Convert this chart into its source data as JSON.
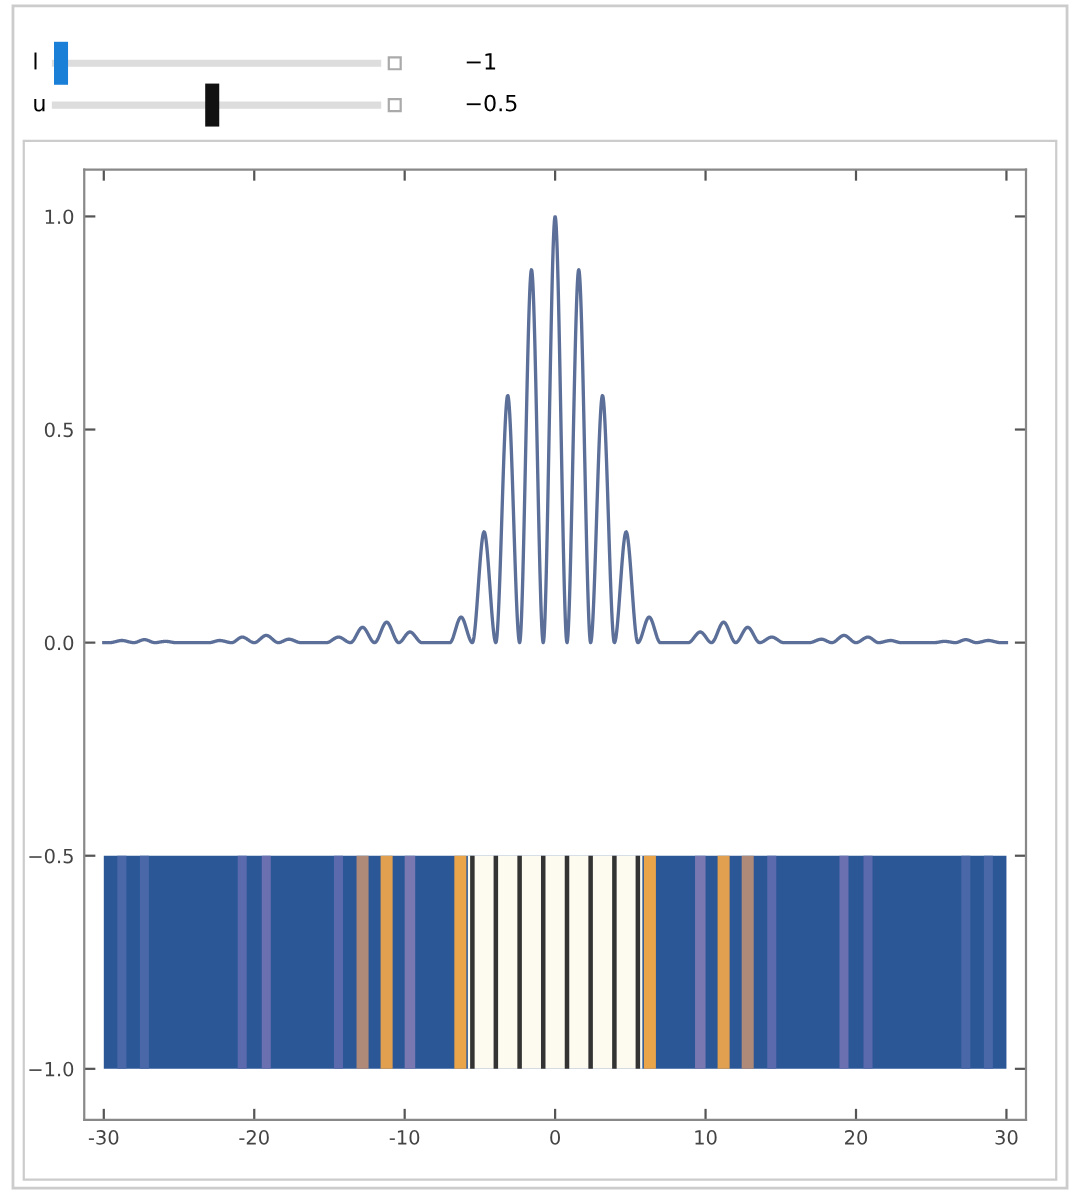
{
  "chart_data": {
    "type": "line",
    "series": [
      {
        "color": "#5b6f98",
        "x": [
          -30,
          -29.6,
          -28.8,
          -28.0,
          -27.3,
          -26.6,
          -25.9,
          -25.2,
          -24.4,
          -23.0,
          -22.3,
          -21.5,
          -20.8,
          -20.0,
          -19.2,
          -18.4,
          -17.7,
          -16.9,
          -16.0,
          -15.2,
          -14.4,
          -13.6,
          -12.8,
          -12.0,
          -11.2,
          -10.4,
          -9.65,
          -8.85,
          -7.5,
          -7.0,
          -6.25,
          -5.5,
          -4.72,
          -3.94,
          -3.15,
          -2.36,
          -1.57,
          -0.79,
          0,
          0.79,
          1.57,
          2.36,
          3.15,
          3.94,
          4.72,
          5.5,
          6.25,
          7.0,
          7.5,
          8.85,
          9.65,
          10.4,
          11.2,
          12.0,
          12.8,
          13.6,
          14.4,
          15.2,
          16.0,
          16.9,
          17.7,
          18.4,
          19.2,
          20.0,
          20.8,
          21.5,
          22.3,
          23.0,
          24.4,
          25.2,
          25.9,
          26.6,
          27.3,
          28.0,
          28.8,
          29.6,
          30
        ],
        "values": [
          0,
          0,
          0.005,
          0,
          0.007,
          0,
          0.003,
          0,
          0,
          0,
          0.005,
          0,
          0.013,
          0,
          0.017,
          0,
          0.008,
          0,
          0,
          0,
          0.013,
          0,
          0.036,
          0,
          0.048,
          0,
          0.025,
          0,
          0,
          0,
          0.06,
          0,
          0.26,
          0,
          0.58,
          0,
          0.875,
          0,
          1.0,
          0,
          0.875,
          0,
          0.58,
          0,
          0.26,
          0,
          0.06,
          0,
          0,
          0,
          0.025,
          0,
          0.048,
          0,
          0.036,
          0,
          0.013,
          0,
          0,
          0,
          0.008,
          0,
          0.017,
          0,
          0.013,
          0,
          0.005,
          0,
          0,
          0,
          0.003,
          0,
          0.007,
          0,
          0.005,
          0,
          0
        ]
      }
    ],
    "bands": [
      {
        "axis": "y",
        "from": -1.0,
        "to": -0.5,
        "color": "#2b5797"
      },
      {
        "axis": "x",
        "from": -29.1,
        "to": -28.5,
        "color": "#4a68a8"
      },
      {
        "axis": "x",
        "from": -27.6,
        "to": -27.0,
        "color": "#4a68a8"
      },
      {
        "axis": "x",
        "from": -21.1,
        "to": -20.5,
        "color": "#5a6aac"
      },
      {
        "axis": "x",
        "from": -19.5,
        "to": -18.9,
        "color": "#6a70b0"
      },
      {
        "axis": "x",
        "from": -14.7,
        "to": -14.1,
        "color": "#5a6aac"
      },
      {
        "axis": "x",
        "from": -13.2,
        "to": -12.4,
        "color": "#b08a78"
      },
      {
        "axis": "x",
        "from": -11.6,
        "to": -10.8,
        "color": "#e0a050"
      },
      {
        "axis": "x",
        "from": -10.0,
        "to": -9.3,
        "color": "#7a78b0"
      },
      {
        "axis": "x",
        "from": -6.7,
        "to": -5.9,
        "color": "#eaa44a"
      },
      {
        "axis": "x",
        "from": -5.8,
        "to": 5.8,
        "color": "#fdfaf0"
      },
      {
        "axis": "x",
        "from": -5.65,
        "to": -5.35,
        "color": "#333333"
      },
      {
        "axis": "x",
        "from": -4.09,
        "to": -3.79,
        "color": "#333333"
      },
      {
        "axis": "x",
        "from": -2.51,
        "to": -2.21,
        "color": "#333333"
      },
      {
        "axis": "x",
        "from": -0.94,
        "to": -0.64,
        "color": "#333333"
      },
      {
        "axis": "x",
        "from": 0.64,
        "to": 0.94,
        "color": "#333333"
      },
      {
        "axis": "x",
        "from": 2.21,
        "to": 2.51,
        "color": "#333333"
      },
      {
        "axis": "x",
        "from": 3.79,
        "to": 4.09,
        "color": "#333333"
      },
      {
        "axis": "x",
        "from": 5.35,
        "to": 5.65,
        "color": "#333333"
      },
      {
        "axis": "x",
        "from": 5.9,
        "to": 6.7,
        "color": "#eaa44a"
      },
      {
        "axis": "x",
        "from": 9.3,
        "to": 10.0,
        "color": "#7a78b0"
      },
      {
        "axis": "x",
        "from": 10.8,
        "to": 11.6,
        "color": "#e0a050"
      },
      {
        "axis": "x",
        "from": 12.4,
        "to": 13.2,
        "color": "#b08a78"
      },
      {
        "axis": "x",
        "from": 14.1,
        "to": 14.7,
        "color": "#5a6aac"
      },
      {
        "axis": "x",
        "from": 18.9,
        "to": 19.5,
        "color": "#6a70b0"
      },
      {
        "axis": "x",
        "from": 20.5,
        "to": 21.1,
        "color": "#5a6aac"
      },
      {
        "axis": "x",
        "from": 27.0,
        "to": 27.6,
        "color": "#4a68a8"
      },
      {
        "axis": "x",
        "from": 28.5,
        "to": 29.1,
        "color": "#4a68a8"
      }
    ],
    "xlim": [
      -31.3,
      31.3
    ],
    "ylim": [
      -1.12,
      1.11
    ],
    "xticks": [
      -30,
      -20,
      -10,
      0,
      10,
      20,
      30
    ],
    "yticks": [
      {
        "value": -1.0,
        "label": "−1.0"
      },
      {
        "value": -0.5,
        "label": "−0.5"
      },
      {
        "value": 0.0,
        "label": "0.0"
      },
      {
        "value": 0.5,
        "label": "0.5"
      },
      {
        "value": 1.0,
        "label": "1.0"
      }
    ],
    "annotations": [
      "l",
      "−1",
      "u",
      "−0.5"
    ],
    "grid": false,
    "legend": false,
    "line_style": "solid",
    "marker": "none"
  }
}
